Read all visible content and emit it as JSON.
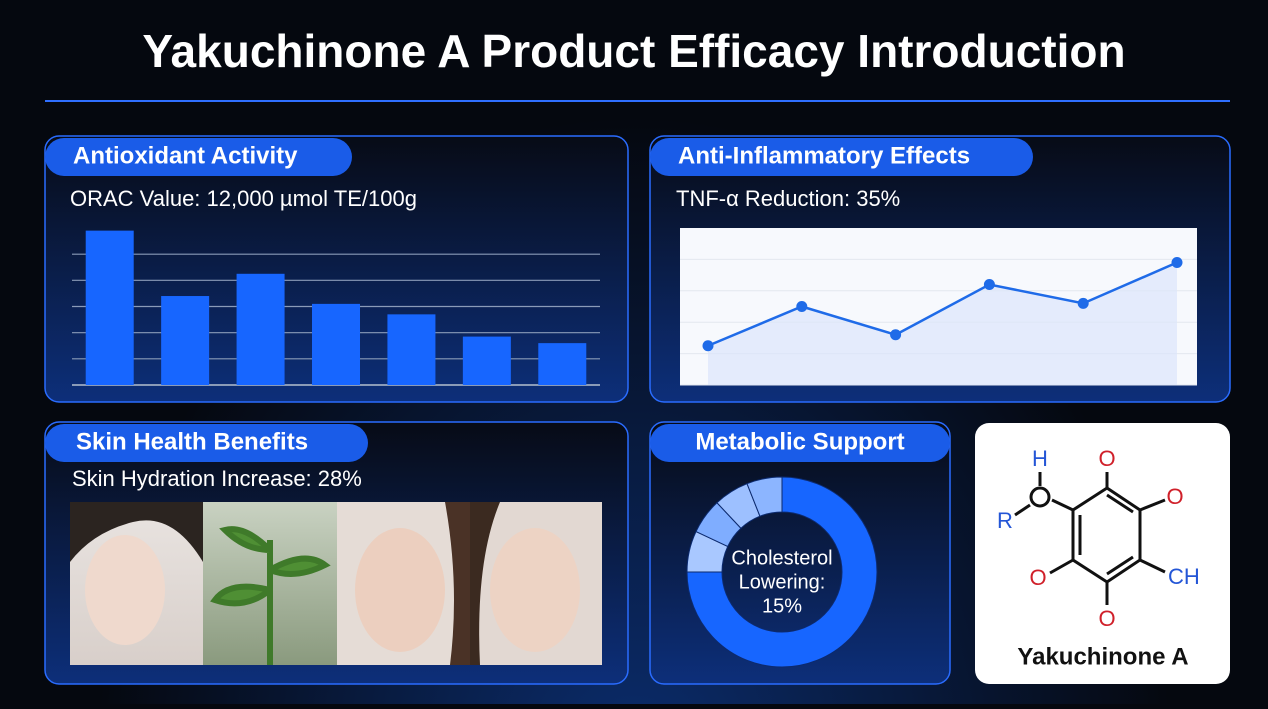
{
  "title": "Yakuchinone A Product Efficacy Introduction",
  "antioxidant": {
    "heading": "Antioxidant Activity",
    "metric": "ORAC Value: 12,000 µmol TE/100g",
    "chart": {
      "type": "bar",
      "values": [
        5.9,
        3.4,
        4.25,
        3.1,
        2.7,
        1.85,
        1.6
      ],
      "color": "#1766ff",
      "ylim": [
        0,
        6
      ],
      "yticks": [
        0,
        1,
        2,
        3,
        4,
        5
      ],
      "grid": true
    }
  },
  "anti_inflammatory": {
    "heading": "Anti-Inflammatory Effects",
    "metric": "TNF-α Reduction: 35%",
    "chart": {
      "type": "line",
      "values": [
        2.5,
        5.0,
        3.2,
        6.4,
        5.2,
        7.8
      ],
      "color": "#1f6be8",
      "ylim": [
        0,
        10
      ],
      "yticks": [
        0,
        2,
        4,
        6,
        8
      ],
      "grid": true
    }
  },
  "skin": {
    "heading": "Skin Health Benefits",
    "metric": "Skin Hydration Increase: 28%"
  },
  "metabolic": {
    "heading": "Metabolic Support",
    "center_label": [
      "Cholesterol",
      "Lowering:",
      "15%"
    ],
    "chart": {
      "type": "pie",
      "values": [
        75,
        7,
        6,
        6,
        6
      ],
      "colors": [
        "#1766ff",
        "#a9c8ff",
        "#7fadff",
        "#9dc0ff",
        "#8cb5ff"
      ]
    }
  },
  "molecule": {
    "label": "Yakuchinone A",
    "atoms": [
      "H",
      "R",
      "O",
      "O",
      "O",
      "O",
      "CH"
    ]
  }
}
